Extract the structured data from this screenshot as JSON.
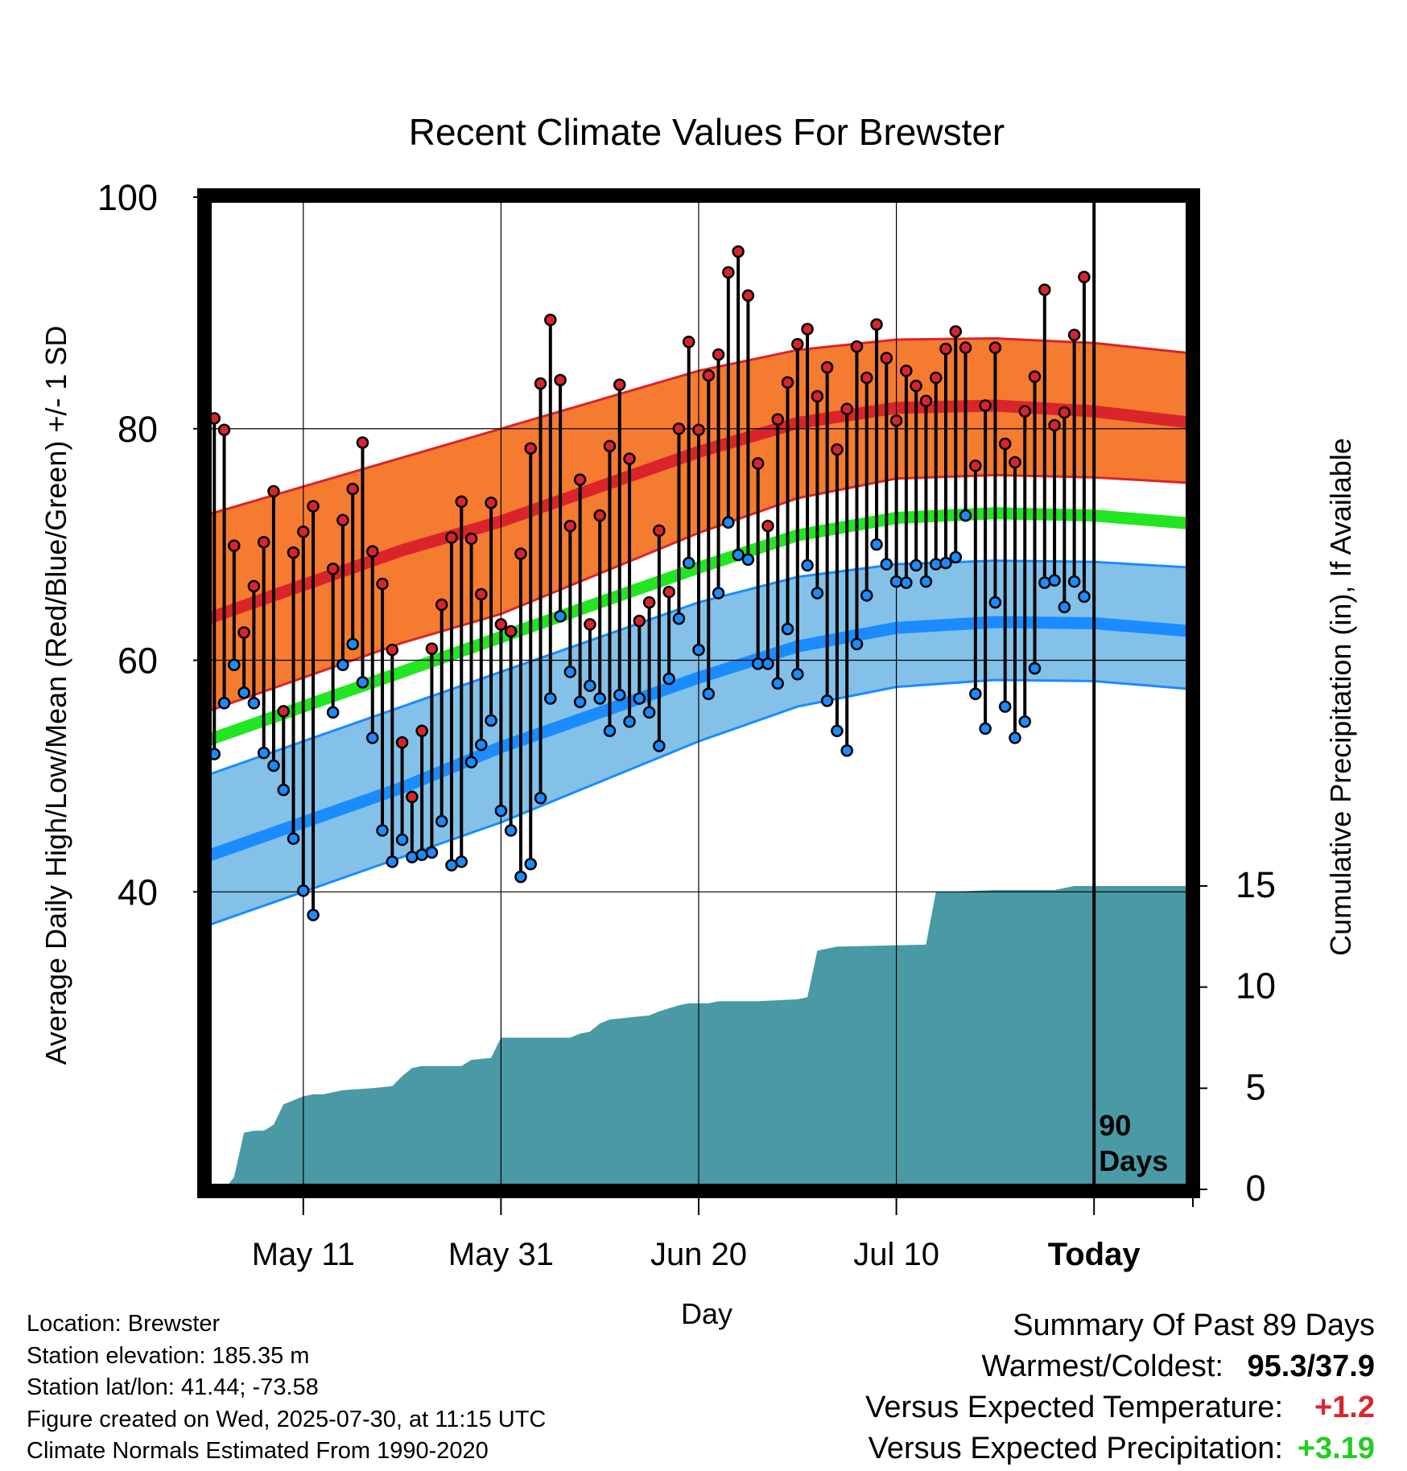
{
  "chart_data": {
    "type": "line",
    "title": "Recent Climate Values For Brewster",
    "xlabel": "Day",
    "ylabel": "Average Daily High/Low/Mean (Red/Blue/Green) +/- 1 SD",
    "ylabel_right": "Cumulative Precipitation (in), If Available",
    "x_ticks": [
      "May 11",
      "May 31",
      "Jun 20",
      "Jul 10",
      "Today"
    ],
    "y_ticks": [
      40,
      60,
      80,
      100
    ],
    "y_right_ticks": [
      0,
      5,
      10,
      15
    ],
    "ylim": [
      28,
      104
    ],
    "ylim_right": [
      0,
      15
    ],
    "today_marker": "90\nDays",
    "grid": true,
    "colors": {
      "high": "#d9252a",
      "high_band": "#f47b30",
      "low": "#1a8cff",
      "low_band": "#84c1e8",
      "mean": "#22e622",
      "precip": "#4a9aa5",
      "frame": "#000000"
    },
    "x_days": [
      0,
      100
    ],
    "normal_high_mean": [
      [
        0,
        63.5
      ],
      [
        10,
        66.5
      ],
      [
        20,
        69.5
      ],
      [
        30,
        72.0
      ],
      [
        40,
        75.0
      ],
      [
        50,
        78.0
      ],
      [
        60,
        80.5
      ],
      [
        70,
        81.8
      ],
      [
        80,
        82.0
      ],
      [
        90,
        81.5
      ],
      [
        100,
        80.5
      ]
    ],
    "normal_high_upper": [
      [
        0,
        72.5
      ],
      [
        10,
        75.0
      ],
      [
        20,
        77.5
      ],
      [
        30,
        80.0
      ],
      [
        40,
        82.5
      ],
      [
        50,
        85.0
      ],
      [
        60,
        86.8
      ],
      [
        70,
        87.7
      ],
      [
        80,
        87.8
      ],
      [
        90,
        87.4
      ],
      [
        100,
        86.5
      ]
    ],
    "normal_high_lower": [
      [
        0,
        55.5
      ],
      [
        10,
        58.5
      ],
      [
        20,
        61.5
      ],
      [
        30,
        64.0
      ],
      [
        40,
        67.5
      ],
      [
        50,
        71.0
      ],
      [
        60,
        74.0
      ],
      [
        70,
        75.7
      ],
      [
        80,
        76.0
      ],
      [
        90,
        75.8
      ],
      [
        100,
        75.3
      ]
    ],
    "normal_mean": [
      [
        0,
        53.0
      ],
      [
        10,
        56.0
      ],
      [
        20,
        59.0
      ],
      [
        30,
        62.0
      ],
      [
        40,
        65.0
      ],
      [
        50,
        68.0
      ],
      [
        60,
        70.8
      ],
      [
        70,
        72.3
      ],
      [
        80,
        72.7
      ],
      [
        90,
        72.5
      ],
      [
        100,
        71.8
      ]
    ],
    "normal_low_mean": [
      [
        0,
        43.0
      ],
      [
        10,
        46.0
      ],
      [
        20,
        49.0
      ],
      [
        30,
        52.5
      ],
      [
        40,
        55.5
      ],
      [
        50,
        58.5
      ],
      [
        60,
        61.2
      ],
      [
        70,
        62.8
      ],
      [
        80,
        63.3
      ],
      [
        90,
        63.2
      ],
      [
        100,
        62.5
      ]
    ],
    "normal_low_upper": [
      [
        0,
        50.0
      ],
      [
        10,
        53.0
      ],
      [
        20,
        56.0
      ],
      [
        30,
        59.0
      ],
      [
        40,
        62.0
      ],
      [
        50,
        65.0
      ],
      [
        60,
        67.2
      ],
      [
        70,
        68.3
      ],
      [
        80,
        68.6
      ],
      [
        90,
        68.5
      ],
      [
        100,
        68.0
      ]
    ],
    "normal_low_lower": [
      [
        0,
        37.0
      ],
      [
        10,
        40.0
      ],
      [
        20,
        43.0
      ],
      [
        30,
        46.0
      ],
      [
        40,
        49.5
      ],
      [
        50,
        53.0
      ],
      [
        60,
        56.0
      ],
      [
        70,
        57.7
      ],
      [
        80,
        58.3
      ],
      [
        90,
        58.2
      ],
      [
        100,
        57.5
      ]
    ],
    "daily_highs": [
      70.3,
      80.9,
      79.9,
      69.9,
      62.4,
      66.4,
      70.2,
      74.6,
      55.6,
      69.3,
      71.1,
      73.3,
      null,
      67.9,
      72.1,
      74.8,
      78.8,
      69.4,
      66.6,
      60.9,
      52.9,
      48.2,
      53.9,
      61.0,
      64.8,
      70.6,
      73.7,
      70.5,
      65.7,
      73.6,
      63.1,
      62.5,
      69.2,
      78.3,
      83.9,
      89.4,
      84.2,
      71.6,
      75.6,
      63.1,
      72.5,
      78.5,
      83.8,
      77.4,
      63.4,
      65.0,
      71.2,
      65.9,
      80.0,
      87.5,
      79.9,
      84.6,
      86.4,
      93.5,
      95.3,
      91.5,
      77.0,
      71.6,
      80.8,
      84.0,
      87.3,
      88.6,
      82.8,
      85.3,
      78.2,
      81.7,
      87.1,
      84.4,
      89.0,
      86.1,
      80.7,
      85.0,
      83.7,
      82.4,
      84.4,
      86.9,
      88.4,
      87.0,
      76.8,
      82.0,
      87.0,
      78.7,
      77.1,
      81.5,
      84.5,
      92.0,
      80.3,
      81.4,
      88.1,
      93.1
    ],
    "daily_lows": [
      37.9,
      51.9,
      56.3,
      59.6,
      57.2,
      56.3,
      52.0,
      50.9,
      48.8,
      44.6,
      40.1,
      38.0,
      null,
      55.5,
      59.6,
      61.4,
      58.1,
      53.3,
      45.3,
      42.6,
      44.5,
      43.0,
      43.2,
      43.4,
      46.1,
      42.3,
      42.6,
      51.2,
      52.7,
      54.8,
      47.0,
      45.3,
      41.3,
      42.4,
      48.1,
      56.7,
      63.8,
      59.0,
      56.4,
      57.8,
      56.7,
      53.9,
      57.0,
      54.7,
      56.7,
      55.5,
      52.6,
      58.4,
      63.6,
      68.4,
      60.9,
      57.1,
      65.8,
      71.9,
      69.1,
      68.7,
      59.7,
      59.7,
      58.0,
      62.7,
      58.8,
      68.2,
      65.8,
      56.5,
      53.9,
      52.2,
      61.4,
      65.6,
      70.0,
      68.3,
      66.8,
      66.7,
      68.2,
      66.8,
      68.3,
      68.4,
      68.9,
      72.5,
      57.1,
      54.1,
      65.0,
      56.0,
      53.3,
      54.7,
      59.3,
      66.7,
      66.9,
      64.6,
      66.8,
      65.5
    ],
    "precip_cumulative": [
      [
        0,
        0.0
      ],
      [
        2,
        0.0
      ],
      [
        3,
        0.6
      ],
      [
        4,
        2.8
      ],
      [
        5,
        2.9
      ],
      [
        6,
        2.9
      ],
      [
        7,
        3.2
      ],
      [
        8,
        4.2
      ],
      [
        10,
        4.6
      ],
      [
        11,
        4.7
      ],
      [
        12,
        4.7
      ],
      [
        13,
        4.8
      ],
      [
        14,
        4.9
      ],
      [
        17,
        5.0
      ],
      [
        19,
        5.1
      ],
      [
        20,
        5.6
      ],
      [
        21,
        6.0
      ],
      [
        22,
        6.1
      ],
      [
        26,
        6.1
      ],
      [
        27,
        6.4
      ],
      [
        29,
        6.5
      ],
      [
        30,
        7.5
      ],
      [
        37,
        7.5
      ],
      [
        38,
        7.7
      ],
      [
        39,
        7.8
      ],
      [
        40,
        8.2
      ],
      [
        41,
        8.4
      ],
      [
        43,
        8.5
      ],
      [
        45,
        8.6
      ],
      [
        46,
        8.8
      ],
      [
        48,
        9.1
      ],
      [
        49,
        9.2
      ],
      [
        51,
        9.2
      ],
      [
        52,
        9.3
      ],
      [
        56,
        9.3
      ],
      [
        60,
        9.4
      ],
      [
        61,
        9.5
      ],
      [
        62,
        11.8
      ],
      [
        63,
        11.9
      ],
      [
        64,
        12.0
      ],
      [
        73,
        12.1
      ],
      [
        74,
        14.7
      ],
      [
        75,
        14.7
      ],
      [
        80,
        14.8
      ],
      [
        86,
        14.8
      ],
      [
        87,
        14.9
      ],
      [
        88,
        15.0
      ],
      [
        100,
        15.0
      ]
    ]
  },
  "footer": {
    "location": "Location: Brewster",
    "elevation": "Station elevation: 185.35 m",
    "latlon": "Station lat/lon: 41.44; -73.58",
    "created": "Figure created on Wed, 2025-07-30, at 11:15 UTC",
    "normals": "Climate Normals Estimated From 1990-2020"
  },
  "summary": {
    "heading": "Summary Of Past 89 Days",
    "warm_cold_label": "Warmest/Coldest:",
    "warm_cold_value": "95.3/37.9",
    "temp_label": "Versus Expected Temperature:",
    "temp_value": "+1.2",
    "precip_label": "Versus Expected Precipitation:",
    "precip_value": "+3.19"
  }
}
